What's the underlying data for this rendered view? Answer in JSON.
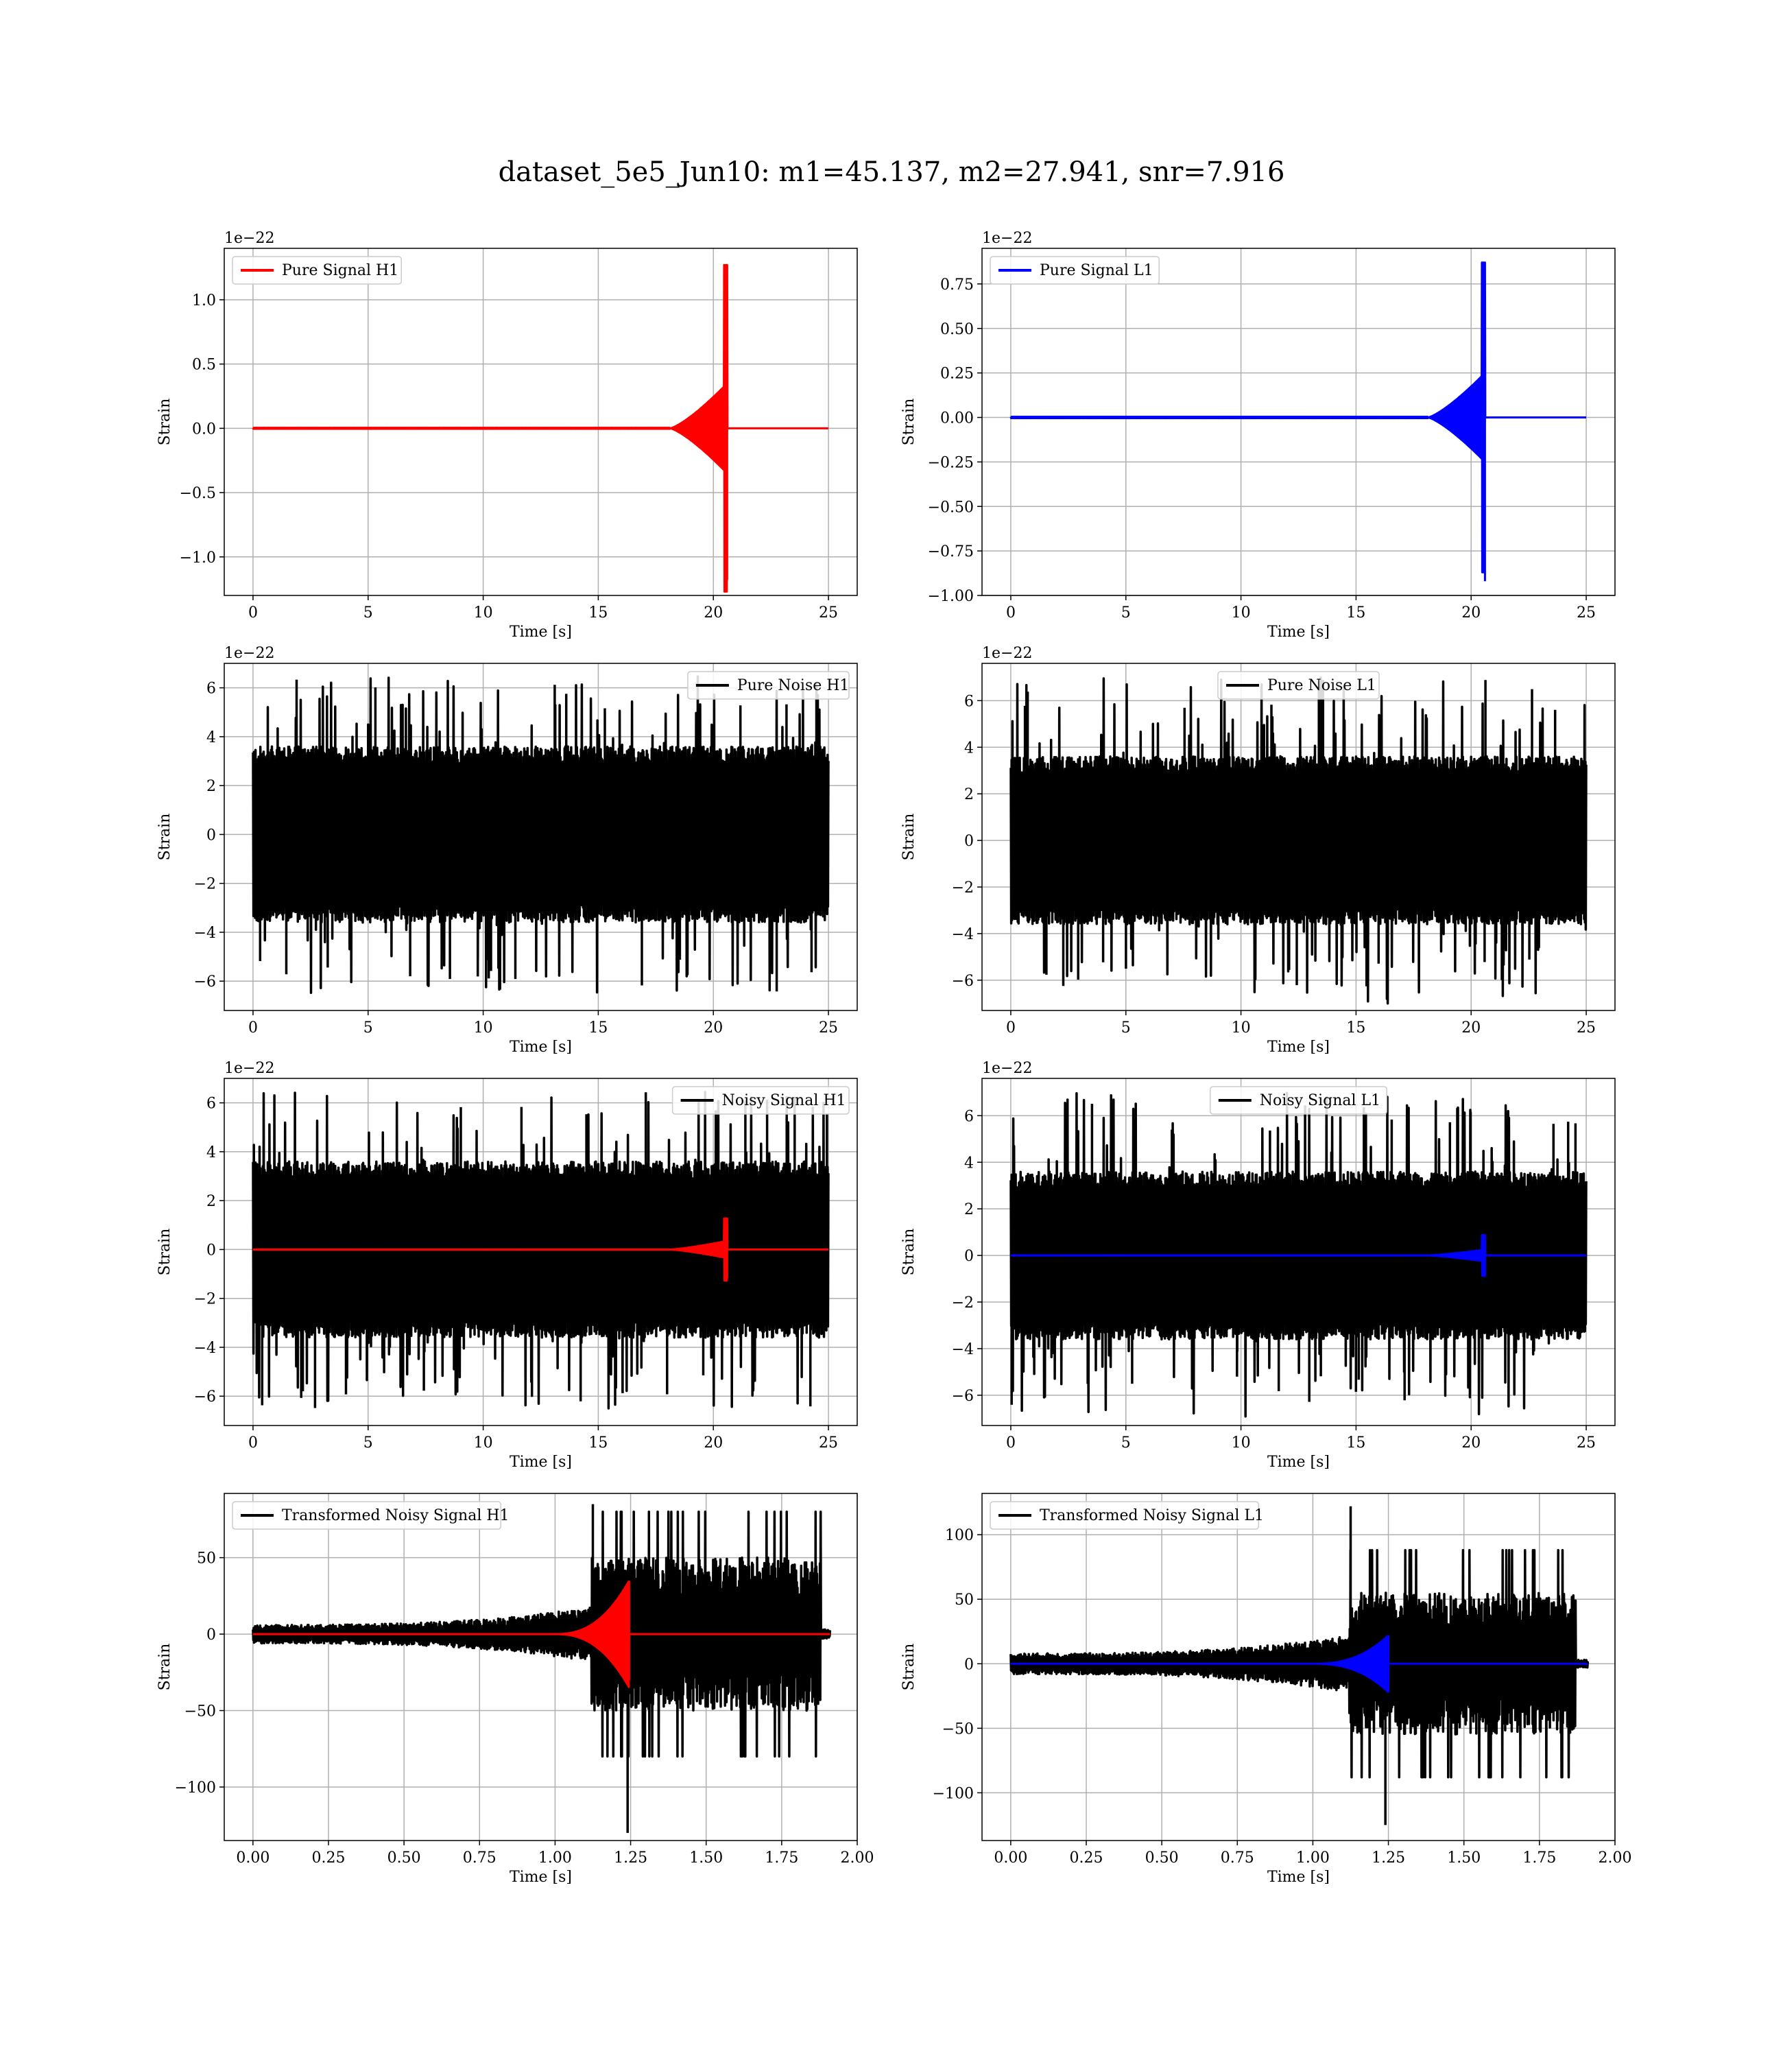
{
  "figure": {
    "title": "dataset_5e5_Jun10: m1=45.137, m2=27.941, snr=7.916"
  },
  "colors": {
    "h1_signal": "#ff0000",
    "l1_signal": "#0000ff",
    "noise": "#000000",
    "grid": "#b0b0b0",
    "axes": "#000000"
  },
  "chart_data": [
    {
      "type": "line",
      "name": "pure-signal-h1",
      "xlabel": "Time [s]",
      "ylabel": "Strain",
      "scale_label": "1e−22",
      "xlim": [
        -1.25,
        26.25
      ],
      "ylim": [
        -1.3,
        1.4
      ],
      "xticks": [
        0,
        5,
        10,
        15,
        20,
        25
      ],
      "xtick_labels": [
        "0",
        "5",
        "10",
        "15",
        "20",
        "25"
      ],
      "yticks": [
        -1.0,
        -0.5,
        0.0,
        0.5,
        1.0
      ],
      "ytick_labels": [
        "−1.0",
        "−0.5",
        "0.0",
        "0.5",
        "1.0"
      ],
      "legend": "top-left",
      "grid": true,
      "series": [
        {
          "name": "Pure Signal H1",
          "color": "#ff0000",
          "kind": "chirp",
          "t_start": 0,
          "t_end": 25,
          "t_merger": 20.6,
          "peak_pos": 1.27,
          "peak_neg": -1.18,
          "plateau": 0.35
        }
      ]
    },
    {
      "type": "line",
      "name": "pure-signal-l1",
      "xlabel": "Time [s]",
      "ylabel": "Strain",
      "scale_label": "1e−22",
      "xlim": [
        -1.25,
        26.25
      ],
      "ylim": [
        -1.0,
        0.95
      ],
      "xticks": [
        0,
        5,
        10,
        15,
        20,
        25
      ],
      "xtick_labels": [
        "0",
        "5",
        "10",
        "15",
        "20",
        "25"
      ],
      "yticks": [
        -1.0,
        -0.75,
        -0.5,
        -0.25,
        0.0,
        0.25,
        0.5,
        0.75
      ],
      "ytick_labels": [
        "−1.00",
        "−0.75",
        "−0.50",
        "−0.25",
        "0.00",
        "0.25",
        "0.50",
        "0.75"
      ],
      "legend": "top-left",
      "grid": true,
      "series": [
        {
          "name": "Pure Signal L1",
          "color": "#0000ff",
          "kind": "chirp",
          "t_start": 0,
          "t_end": 25,
          "t_merger": 20.6,
          "peak_pos": 0.87,
          "peak_neg": -0.92,
          "plateau": 0.25
        }
      ]
    },
    {
      "type": "line",
      "name": "pure-noise-h1",
      "xlabel": "Time [s]",
      "ylabel": "Strain",
      "scale_label": "1e−22",
      "xlim": [
        -1.25,
        26.25
      ],
      "ylim": [
        -7.2,
        7.0
      ],
      "xticks": [
        0,
        5,
        10,
        15,
        20,
        25
      ],
      "xtick_labels": [
        "0",
        "5",
        "10",
        "15",
        "20",
        "25"
      ],
      "yticks": [
        -6,
        -4,
        -2,
        0,
        2,
        4,
        6
      ],
      "ytick_labels": [
        "−6",
        "−4",
        "−2",
        "0",
        "2",
        "4",
        "6"
      ],
      "legend": "top-right",
      "grid": true,
      "series": [
        {
          "name": "Pure Noise H1",
          "color": "#000000",
          "kind": "noise",
          "t_start": 0,
          "t_end": 25,
          "band": 3.6,
          "spike_pos": 6.5,
          "spike_neg": -6.5
        }
      ]
    },
    {
      "type": "line",
      "name": "pure-noise-l1",
      "xlabel": "Time [s]",
      "ylabel": "Strain",
      "scale_label": "1e−22",
      "xlim": [
        -1.25,
        26.25
      ],
      "ylim": [
        -7.3,
        7.6
      ],
      "xticks": [
        0,
        5,
        10,
        15,
        20,
        25
      ],
      "xtick_labels": [
        "0",
        "5",
        "10",
        "15",
        "20",
        "25"
      ],
      "yticks": [
        -6,
        -4,
        -2,
        0,
        2,
        4,
        6
      ],
      "ytick_labels": [
        "−6",
        "−4",
        "−2",
        "0",
        "2",
        "4",
        "6"
      ],
      "legend": "top-center",
      "grid": true,
      "series": [
        {
          "name": "Pure Noise L1",
          "color": "#000000",
          "kind": "noise",
          "t_start": 0,
          "t_end": 25,
          "band": 3.6,
          "spike_pos": 7.0,
          "spike_neg": -6.6
        }
      ]
    },
    {
      "type": "line",
      "name": "noisy-signal-h1",
      "xlabel": "Time [s]",
      "ylabel": "Strain",
      "scale_label": "1e−22",
      "xlim": [
        -1.25,
        26.25
      ],
      "ylim": [
        -7.2,
        7.0
      ],
      "xticks": [
        0,
        5,
        10,
        15,
        20,
        25
      ],
      "xtick_labels": [
        "0",
        "5",
        "10",
        "15",
        "20",
        "25"
      ],
      "yticks": [
        -6,
        -4,
        -2,
        0,
        2,
        4,
        6
      ],
      "ytick_labels": [
        "−6",
        "−4",
        "−2",
        "0",
        "2",
        "4",
        "6"
      ],
      "legend": "top-right",
      "grid": true,
      "series": [
        {
          "name": "Noisy Signal H1",
          "color": "#000000",
          "kind": "noise",
          "t_start": 0,
          "t_end": 25,
          "band": 3.6,
          "spike_pos": 6.5,
          "spike_neg": -6.5
        },
        {
          "name": "",
          "color": "#ff0000",
          "kind": "chirp",
          "t_start": 0,
          "t_end": 25,
          "t_merger": 20.6,
          "peak_pos": 1.27,
          "peak_neg": -1.18,
          "plateau": 0.35
        }
      ]
    },
    {
      "type": "line",
      "name": "noisy-signal-l1",
      "xlabel": "Time [s]",
      "ylabel": "Strain",
      "scale_label": "1e−22",
      "xlim": [
        -1.25,
        26.25
      ],
      "ylim": [
        -7.3,
        7.6
      ],
      "xticks": [
        0,
        5,
        10,
        15,
        20,
        25
      ],
      "xtick_labels": [
        "0",
        "5",
        "10",
        "15",
        "20",
        "25"
      ],
      "yticks": [
        -6,
        -4,
        -2,
        0,
        2,
        4,
        6
      ],
      "ytick_labels": [
        "−6",
        "−4",
        "−2",
        "0",
        "2",
        "4",
        "6"
      ],
      "legend": "top-center",
      "grid": true,
      "series": [
        {
          "name": "Noisy Signal L1",
          "color": "#000000",
          "kind": "noise",
          "t_start": 0,
          "t_end": 25,
          "band": 3.6,
          "spike_pos": 7.0,
          "spike_neg": -6.6
        },
        {
          "name": "",
          "color": "#0000ff",
          "kind": "chirp",
          "t_start": 0,
          "t_end": 25,
          "t_merger": 20.6,
          "peak_pos": 0.87,
          "peak_neg": -0.92,
          "plateau": 0.25
        }
      ]
    },
    {
      "type": "line",
      "name": "transformed-noisy-signal-h1",
      "xlabel": "Time [s]",
      "ylabel": "Strain",
      "scale_label": "",
      "xlim": [
        -0.095,
        2.0
      ],
      "ylim": [
        -135,
        92
      ],
      "xticks": [
        0.0,
        0.25,
        0.5,
        0.75,
        1.0,
        1.25,
        1.5,
        1.75,
        2.0
      ],
      "xtick_labels": [
        "0.00",
        "0.25",
        "0.50",
        "0.75",
        "1.00",
        "1.25",
        "1.50",
        "1.75",
        "2.00"
      ],
      "yticks": [
        -100,
        -50,
        0,
        50
      ],
      "ytick_labels": [
        "−100",
        "−50",
        "0",
        "50"
      ],
      "legend": "top-left",
      "grid": true,
      "series": [
        {
          "name": "Transformed Noisy Signal H1",
          "color": "#000000",
          "kind": "growing-noise",
          "t_start": 0,
          "t_end": 1.91,
          "t_jump": 1.12,
          "t_drop": 1.88,
          "early_band": 6,
          "mid_band": 18,
          "late_band": 50,
          "spike_pos": 85,
          "spike_neg": -130
        },
        {
          "name": "",
          "color": "#ff0000",
          "kind": "chirp",
          "t_start": 0,
          "t_end": 1.91,
          "t_merger": 1.245,
          "peak_pos": 35,
          "peak_neg": -30,
          "plateau": 0
        }
      ]
    },
    {
      "type": "line",
      "name": "transformed-noisy-signal-l1",
      "xlabel": "Time [s]",
      "ylabel": "Strain",
      "scale_label": "",
      "xlim": [
        -0.095,
        2.0
      ],
      "ylim": [
        -137,
        132
      ],
      "xticks": [
        0.0,
        0.25,
        0.5,
        0.75,
        1.0,
        1.25,
        1.5,
        1.75,
        2.0
      ],
      "xtick_labels": [
        "0.00",
        "0.25",
        "0.50",
        "0.75",
        "1.00",
        "1.25",
        "1.50",
        "1.75",
        "2.00"
      ],
      "yticks": [
        -100,
        -50,
        0,
        50,
        100
      ],
      "ytick_labels": [
        "−100",
        "−50",
        "0",
        "50",
        "100"
      ],
      "legend": "top-left",
      "grid": true,
      "series": [
        {
          "name": "Transformed Noisy Signal L1",
          "color": "#000000",
          "kind": "growing-noise",
          "t_start": 0,
          "t_end": 1.91,
          "t_jump": 1.12,
          "t_drop": 1.87,
          "early_band": 8,
          "mid_band": 22,
          "late_band": 55,
          "spike_pos": 122,
          "spike_neg": -125
        },
        {
          "name": "",
          "color": "#0000ff",
          "kind": "chirp",
          "t_start": 0,
          "t_end": 1.91,
          "t_merger": 1.25,
          "peak_pos": 22,
          "peak_neg": -22,
          "plateau": 0
        }
      ]
    }
  ]
}
